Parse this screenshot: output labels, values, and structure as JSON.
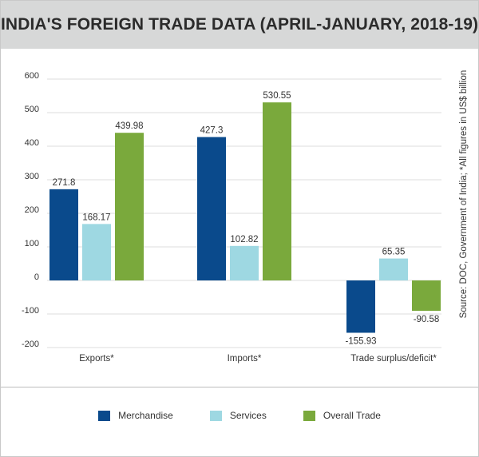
{
  "chart_data": {
    "type": "bar",
    "title": "INDIA'S FOREIGN TRADE DATA (APRIL-JANUARY, 2018-19)",
    "categories": [
      "Exports*",
      "Imports*",
      "Trade surplus/deficit*"
    ],
    "series": [
      {
        "name": "Merchandise",
        "color": "#0a4a8c",
        "values": [
          271.8,
          427.3,
          -155.93
        ],
        "labels": [
          "271.8",
          "427.3",
          "-155.93"
        ]
      },
      {
        "name": "Services",
        "color": "#9ed8e2",
        "values": [
          168.17,
          102.82,
          65.35
        ],
        "labels": [
          "168.17",
          "102.82",
          "65.35"
        ]
      },
      {
        "name": "Overall Trade",
        "color": "#7aa93c",
        "values": [
          439.98,
          530.55,
          -90.58
        ],
        "labels": [
          "439.98",
          "530.55",
          "-90.58"
        ]
      }
    ],
    "ylim": [
      -200,
      600
    ],
    "yticks": [
      600,
      500,
      400,
      300,
      200,
      100,
      0,
      -100,
      -200
    ],
    "ytick_labels": [
      "600",
      "500",
      "400",
      "300",
      "200",
      "100",
      "0",
      "-100",
      "-200"
    ],
    "grid": true,
    "legend_position": "bottom",
    "source_note": "Source: DOC, Government of India; *All figures in US$ billion"
  }
}
